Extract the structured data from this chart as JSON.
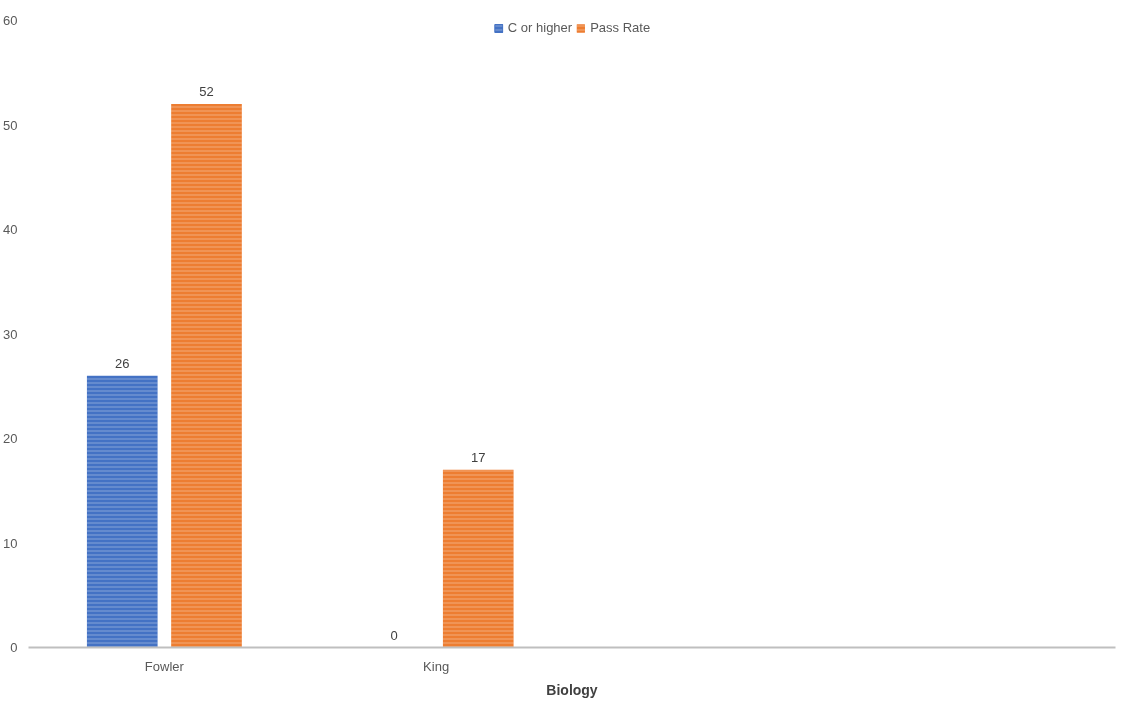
{
  "chart_data": {
    "type": "bar",
    "xlabel": "Biology",
    "categories": [
      "Fowler",
      "King",
      null,
      null
    ],
    "series": [
      {
        "name": "C or higher",
        "color": "#4472c4",
        "values": [
          26,
          0,
          null,
          null
        ]
      },
      {
        "name": "Pass Rate",
        "color": "#ed7d31",
        "values": [
          52,
          17,
          null,
          null
        ]
      }
    ],
    "ylim": [
      0,
      60
    ],
    "yticks": [
      0,
      10,
      20,
      30,
      40,
      50,
      60
    ],
    "grid": false,
    "legend": "top",
    "data_labels": true
  }
}
